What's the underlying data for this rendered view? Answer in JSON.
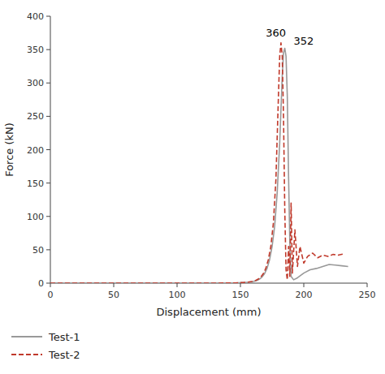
{
  "chart_data": {
    "type": "line",
    "title": "",
    "xlabel": "Displacement (mm)",
    "ylabel": "Force (kN)",
    "xlim": [
      0,
      250
    ],
    "ylim": [
      0,
      400
    ],
    "xticks": [
      0,
      50,
      100,
      150,
      200,
      250
    ],
    "yticks": [
      0,
      50,
      100,
      150,
      200,
      250,
      300,
      350,
      400
    ],
    "grid": false,
    "legend": "lower left",
    "series": [
      {
        "name": "Test-1",
        "color": "#999999",
        "line_style": "solid",
        "x": [
          0,
          50,
          100,
          130,
          140,
          148,
          153,
          157,
          160,
          163,
          165,
          167,
          169,
          171,
          173,
          175,
          177,
          179,
          181,
          183,
          184,
          185,
          186,
          187,
          188,
          189,
          190,
          192,
          195,
          200,
          205,
          210,
          215,
          220,
          225,
          230,
          235
        ],
        "values": [
          0,
          0,
          0,
          0,
          0.2,
          0.5,
          1,
          1.5,
          2.5,
          4,
          6,
          9,
          14,
          22,
          35,
          55,
          85,
          135,
          210,
          310,
          345,
          352,
          340,
          280,
          160,
          60,
          10,
          5,
          8,
          15,
          20,
          22,
          25,
          28,
          27,
          26,
          25
        ]
      },
      {
        "name": "Test-2",
        "color": "#c0392b",
        "line_style": "dashed",
        "x": [
          0,
          50,
          100,
          130,
          140,
          147,
          152,
          156,
          159,
          162,
          164,
          166,
          168,
          170,
          172,
          174,
          176,
          178,
          180,
          181,
          182,
          183,
          184,
          185,
          186,
          187,
          188,
          189,
          190,
          191,
          193,
          195,
          197,
          200,
          203,
          207,
          211,
          215,
          219,
          223,
          227,
          232
        ],
        "values": [
          0,
          0,
          0,
          0,
          0.2,
          0.5,
          1,
          1.5,
          2.5,
          4,
          6,
          9,
          14,
          22,
          35,
          55,
          90,
          155,
          280,
          340,
          360,
          340,
          250,
          110,
          20,
          5,
          55,
          10,
          120,
          15,
          80,
          25,
          55,
          30,
          40,
          45,
          38,
          42,
          40,
          43,
          42,
          44
        ]
      }
    ],
    "annotations": [
      {
        "text": "360",
        "x": 178,
        "y": 370
      },
      {
        "text": "352",
        "x": 192,
        "y": 358
      }
    ]
  }
}
